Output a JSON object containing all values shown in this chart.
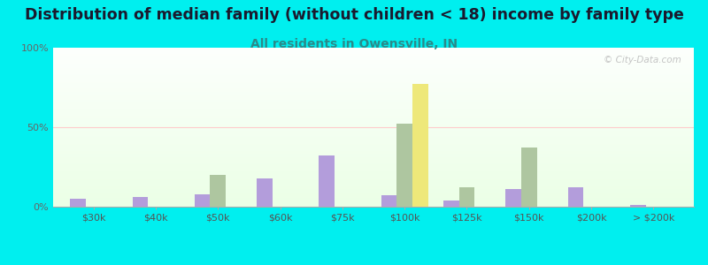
{
  "title": "Distribution of median family (without children < 18) income by family type",
  "subtitle": "All residents in Owensville, IN",
  "watermark": "© City-Data.com",
  "categories": [
    "$30k",
    "$40k",
    "$50k",
    "$60k",
    "$75k",
    "$100k",
    "$125k",
    "$150k",
    "$200k",
    "> $200k"
  ],
  "married_couple": [
    5,
    6,
    8,
    18,
    32,
    7,
    4,
    11,
    12,
    1
  ],
  "male_no_wife": [
    0,
    0,
    20,
    0,
    0,
    52,
    12,
    37,
    0,
    0
  ],
  "female_no_husband": [
    0,
    0,
    0,
    0,
    0,
    77,
    0,
    0,
    0,
    0
  ],
  "married_color": "#b39ddb",
  "male_color": "#aec6a0",
  "female_color": "#eee87a",
  "bg_color": "#00efef",
  "ylim": [
    0,
    100
  ],
  "yticks": [
    0,
    50,
    100
  ],
  "ytick_labels": [
    "0%",
    "50%",
    "100%"
  ],
  "bar_width": 0.25,
  "title_fontsize": 12.5,
  "subtitle_fontsize": 10,
  "axis_fontsize": 8,
  "legend_fontsize": 9
}
